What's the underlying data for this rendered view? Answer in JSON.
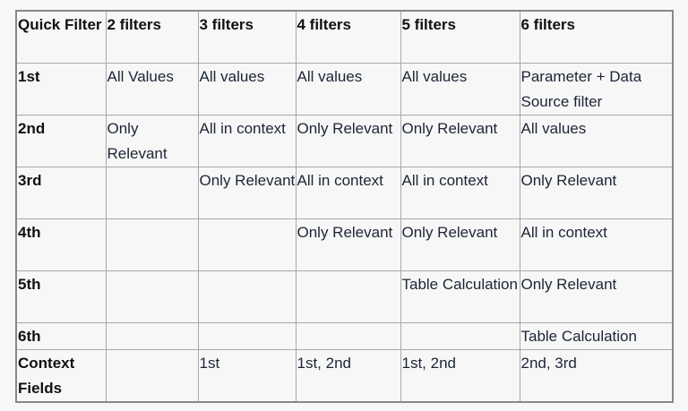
{
  "table": {
    "headers": [
      "Quick Filter",
      "2 filters",
      "3 filters",
      "4 filters",
      "5 filters",
      "6 filters"
    ],
    "rows": [
      [
        "1st",
        "All Values",
        "All values",
        "All values",
        "All values",
        "Parameter + Data Source filter"
      ],
      [
        "2nd",
        "Only Relevant",
        "All in context",
        "Only Relevant",
        "Only Relevant",
        "All values"
      ],
      [
        "3rd",
        "",
        "Only Relevant",
        "All in context",
        "All in context",
        "Only Relevant"
      ],
      [
        "4th",
        "",
        "",
        "Only Relevant",
        "Only Relevant",
        "All in context"
      ],
      [
        "5th",
        "",
        "",
        "",
        "Table Calculation",
        "Only Relevant"
      ],
      [
        "6th",
        "",
        "",
        "",
        "",
        "Table Calculation"
      ],
      [
        "Context Fields",
        "",
        "1st",
        "1st, 2nd",
        "1st, 2nd",
        "2nd, 3rd"
      ]
    ]
  }
}
